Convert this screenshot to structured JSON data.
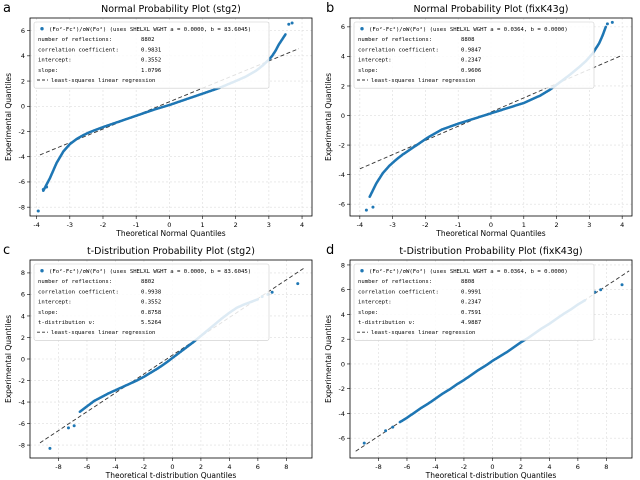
{
  "figure": {
    "background": "#ffffff",
    "point_color": "#1f77b4",
    "fit_color": "#333333",
    "grid_color": "#dddddd"
  },
  "chart_data": [
    {
      "panel_label": "a",
      "type": "scatter",
      "title": "Normal Probability Plot (stg2)",
      "xlabel": "Theoretical Normal Quantiles",
      "ylabel": "Experimental Quantiles",
      "xlim": [
        -4.2,
        4.3
      ],
      "ylim": [
        -8.7,
        7.0
      ],
      "xticks": [
        -4,
        -3,
        -2,
        -1,
        0,
        1,
        2,
        3,
        4
      ],
      "yticks": [
        -8,
        -6,
        -4,
        -2,
        0,
        2,
        4,
        6
      ],
      "grid": true,
      "legend_position": "top-left",
      "legend": {
        "series_label": "(Fo²-Fc²)/σW(Fo²)  (uses SHELXL WGHT a = 0.0000, b = 83.6045)",
        "stats": [
          {
            "name": "number of reflections:",
            "value": "8802"
          },
          {
            "name": "correlation coefficient:",
            "value": "0.9831"
          },
          {
            "name": "intercept:",
            "value": "0.3552"
          },
          {
            "name": "slope:",
            "value": "1.0796"
          }
        ],
        "fit_label": "least-squares linear regression"
      },
      "fit_line": {
        "intercept": 0.3552,
        "slope": 1.0796,
        "x": [
          -3.9,
          3.9
        ]
      },
      "curve": {
        "x": [
          -3.8,
          -3.6,
          -3.4,
          -3.2,
          -3.0,
          -2.8,
          -2.6,
          -2.4,
          -2.2,
          -2.0,
          -1.5,
          -1.0,
          -0.5,
          0.0,
          0.5,
          1.0,
          1.5,
          2.0,
          2.3,
          2.6,
          2.8,
          3.0,
          3.1,
          3.2,
          3.3,
          3.4,
          3.5
        ],
        "y": [
          -6.7,
          -5.7,
          -4.5,
          -3.6,
          -3.0,
          -2.6,
          -2.3,
          -2.05,
          -1.85,
          -1.65,
          -1.2,
          -0.75,
          -0.3,
          0.1,
          0.55,
          1.0,
          1.45,
          2.0,
          2.35,
          2.8,
          3.2,
          3.7,
          4.0,
          4.4,
          4.9,
          5.3,
          5.7
        ]
      },
      "outliers": {
        "x": [
          -3.95,
          -3.8,
          -3.7,
          3.6,
          3.7
        ],
        "y": [
          -8.3,
          -6.6,
          -6.4,
          6.5,
          6.6
        ]
      }
    },
    {
      "panel_label": "b",
      "type": "scatter",
      "title": "Normal Probability Plot (fixK43g)",
      "xlabel": "Theoretical Normal Quantiles",
      "ylabel": "Experimental Quantiles",
      "xlim": [
        -4.3,
        4.3
      ],
      "ylim": [
        -6.8,
        6.6
      ],
      "xticks": [
        -4,
        -3,
        -2,
        -1,
        0,
        1,
        2,
        3,
        4
      ],
      "yticks": [
        -6,
        -4,
        -2,
        0,
        2,
        4,
        6
      ],
      "grid": true,
      "legend_position": "top-left",
      "legend": {
        "series_label": "(Fo²-Fc²)/σW(Fo²)  (uses SHELXL WGHT a = 0.0364, b = 0.0000)",
        "stats": [
          {
            "name": "number of reflections:",
            "value": "8808"
          },
          {
            "name": "correlation coefficient:",
            "value": "0.9847"
          },
          {
            "name": "intercept:",
            "value": "0.2347"
          },
          {
            "name": "slope:",
            "value": "0.9606"
          }
        ],
        "fit_label": "least-squares linear regression"
      },
      "fit_line": {
        "intercept": 0.2347,
        "slope": 0.9606,
        "x": [
          -4.0,
          4.0
        ]
      },
      "curve": {
        "x": [
          -3.7,
          -3.5,
          -3.3,
          -3.1,
          -2.9,
          -2.7,
          -2.5,
          -2.3,
          -2.1,
          -1.9,
          -1.5,
          -1.0,
          -0.5,
          0.0,
          0.5,
          1.0,
          1.5,
          1.8,
          2.1,
          2.4,
          2.7,
          2.9,
          3.1,
          3.3,
          3.4,
          3.5
        ],
        "y": [
          -5.5,
          -4.6,
          -3.9,
          -3.4,
          -3.0,
          -2.65,
          -2.35,
          -2.05,
          -1.75,
          -1.45,
          -0.95,
          -0.55,
          -0.2,
          0.15,
          0.5,
          0.85,
          1.35,
          1.75,
          2.25,
          2.75,
          3.3,
          3.7,
          4.2,
          4.9,
          5.4,
          6.0
        ]
      },
      "outliers": {
        "x": [
          -3.8,
          -3.6,
          3.55,
          3.7
        ],
        "y": [
          -6.4,
          -6.2,
          6.2,
          6.3
        ]
      }
    },
    {
      "panel_label": "c",
      "type": "scatter",
      "title": "t-Distribution Probability Plot (stg2)",
      "xlabel": "Theoretical t-distribution Quantiles",
      "ylabel": "Experimental Quantiles",
      "xlim": [
        -10,
        9.8
      ],
      "ylim": [
        -9.2,
        9.2
      ],
      "xticks": [
        -8,
        -6,
        -4,
        -2,
        0,
        2,
        4,
        6,
        8
      ],
      "yticks": [
        -8,
        -6,
        -4,
        -2,
        0,
        2,
        4,
        6,
        8
      ],
      "grid": true,
      "legend_position": "top-left",
      "legend": {
        "series_label": "(Fo²-Fc²)/σW(Fo²)  (uses SHELXL WGHT a = 0.0000, b = 83.6045)",
        "stats": [
          {
            "name": "number of reflections:",
            "value": "8802"
          },
          {
            "name": "correlation coefficient:",
            "value": "0.9938"
          },
          {
            "name": "intercept:",
            "value": "0.3552"
          },
          {
            "name": "slope:",
            "value": "0.8758"
          },
          {
            "name": "t-distribution ν:",
            "value": "5.5264"
          }
        ],
        "fit_label": "least-squares linear regression"
      },
      "fit_line": {
        "intercept": 0.3552,
        "slope": 0.8758,
        "x": [
          -9.3,
          9.3
        ]
      },
      "curve": {
        "x": [
          -6.5,
          -6.0,
          -5.5,
          -5.0,
          -4.5,
          -4.0,
          -3.5,
          -3.0,
          -2.5,
          -2.0,
          -1.5,
          -1.0,
          -0.5,
          0.0,
          0.5,
          1.0,
          1.5,
          2.0,
          2.5,
          3.0,
          3.5,
          4.0,
          4.5,
          5.0,
          5.5,
          6.0
        ],
        "y": [
          -4.9,
          -4.4,
          -3.9,
          -3.55,
          -3.2,
          -2.9,
          -2.6,
          -2.3,
          -2.0,
          -1.65,
          -1.25,
          -0.85,
          -0.4,
          0.1,
          0.6,
          1.1,
          1.6,
          2.15,
          2.7,
          3.25,
          3.8,
          4.3,
          4.75,
          5.05,
          5.3,
          5.55
        ]
      },
      "outliers": {
        "x": [
          -8.6,
          -7.3,
          -6.9,
          6.3,
          6.7,
          7.0,
          8.8
        ],
        "y": [
          -8.3,
          -6.4,
          -6.2,
          5.8,
          6.0,
          6.2,
          7.0
        ]
      }
    },
    {
      "panel_label": "d",
      "type": "scatter",
      "title": "t-Distribution Probability Plot (fixK43g)",
      "xlabel": "Theoretical t-distribution Quantiles",
      "ylabel": "Experimental Quantiles",
      "xlim": [
        -10,
        9.8
      ],
      "ylim": [
        -7.6,
        8.4
      ],
      "xticks": [
        -8,
        -6,
        -4,
        -2,
        0,
        2,
        4,
        6,
        8
      ],
      "yticks": [
        -6,
        -4,
        -2,
        0,
        2,
        4,
        6,
        8
      ],
      "grid": true,
      "legend_position": "top-left",
      "legend": {
        "series_label": "(Fo²-Fc²)/σW(Fo²)  (uses SHELXL WGHT a = 0.0364, b = 0.0000)",
        "stats": [
          {
            "name": "number of reflections:",
            "value": "8808"
          },
          {
            "name": "correlation coefficient:",
            "value": "0.9991"
          },
          {
            "name": "intercept:",
            "value": "0.2347"
          },
          {
            "name": "slope:",
            "value": "0.7591"
          },
          {
            "name": "t-distribution ν:",
            "value": "4.9887"
          }
        ],
        "fit_label": "least-squares linear regression"
      },
      "fit_line": {
        "intercept": 0.2347,
        "slope": 0.7591,
        "x": [
          -9.6,
          9.6
        ]
      },
      "curve": {
        "x": [
          -6.5,
          -6.0,
          -5.5,
          -5.0,
          -4.5,
          -4.0,
          -3.5,
          -3.0,
          -2.5,
          -2.0,
          -1.5,
          -1.0,
          -0.5,
          0.0,
          0.5,
          1.0,
          1.5,
          2.0,
          2.5,
          3.0,
          3.5,
          4.0,
          4.5,
          5.0,
          5.5,
          6.0,
          6.5
        ],
        "y": [
          -4.7,
          -4.35,
          -3.95,
          -3.55,
          -3.2,
          -2.8,
          -2.4,
          -2.05,
          -1.65,
          -1.3,
          -0.9,
          -0.5,
          -0.15,
          0.25,
          0.6,
          0.95,
          1.35,
          1.75,
          2.1,
          2.5,
          2.9,
          3.25,
          3.65,
          4.05,
          4.4,
          4.8,
          5.15
        ]
      },
      "outliers": {
        "x": [
          -9.0,
          -7.5,
          -7.0,
          7.2,
          7.6,
          9.1
        ],
        "y": [
          -6.4,
          -5.4,
          -5.1,
          5.8,
          6.0,
          6.4
        ]
      }
    }
  ]
}
